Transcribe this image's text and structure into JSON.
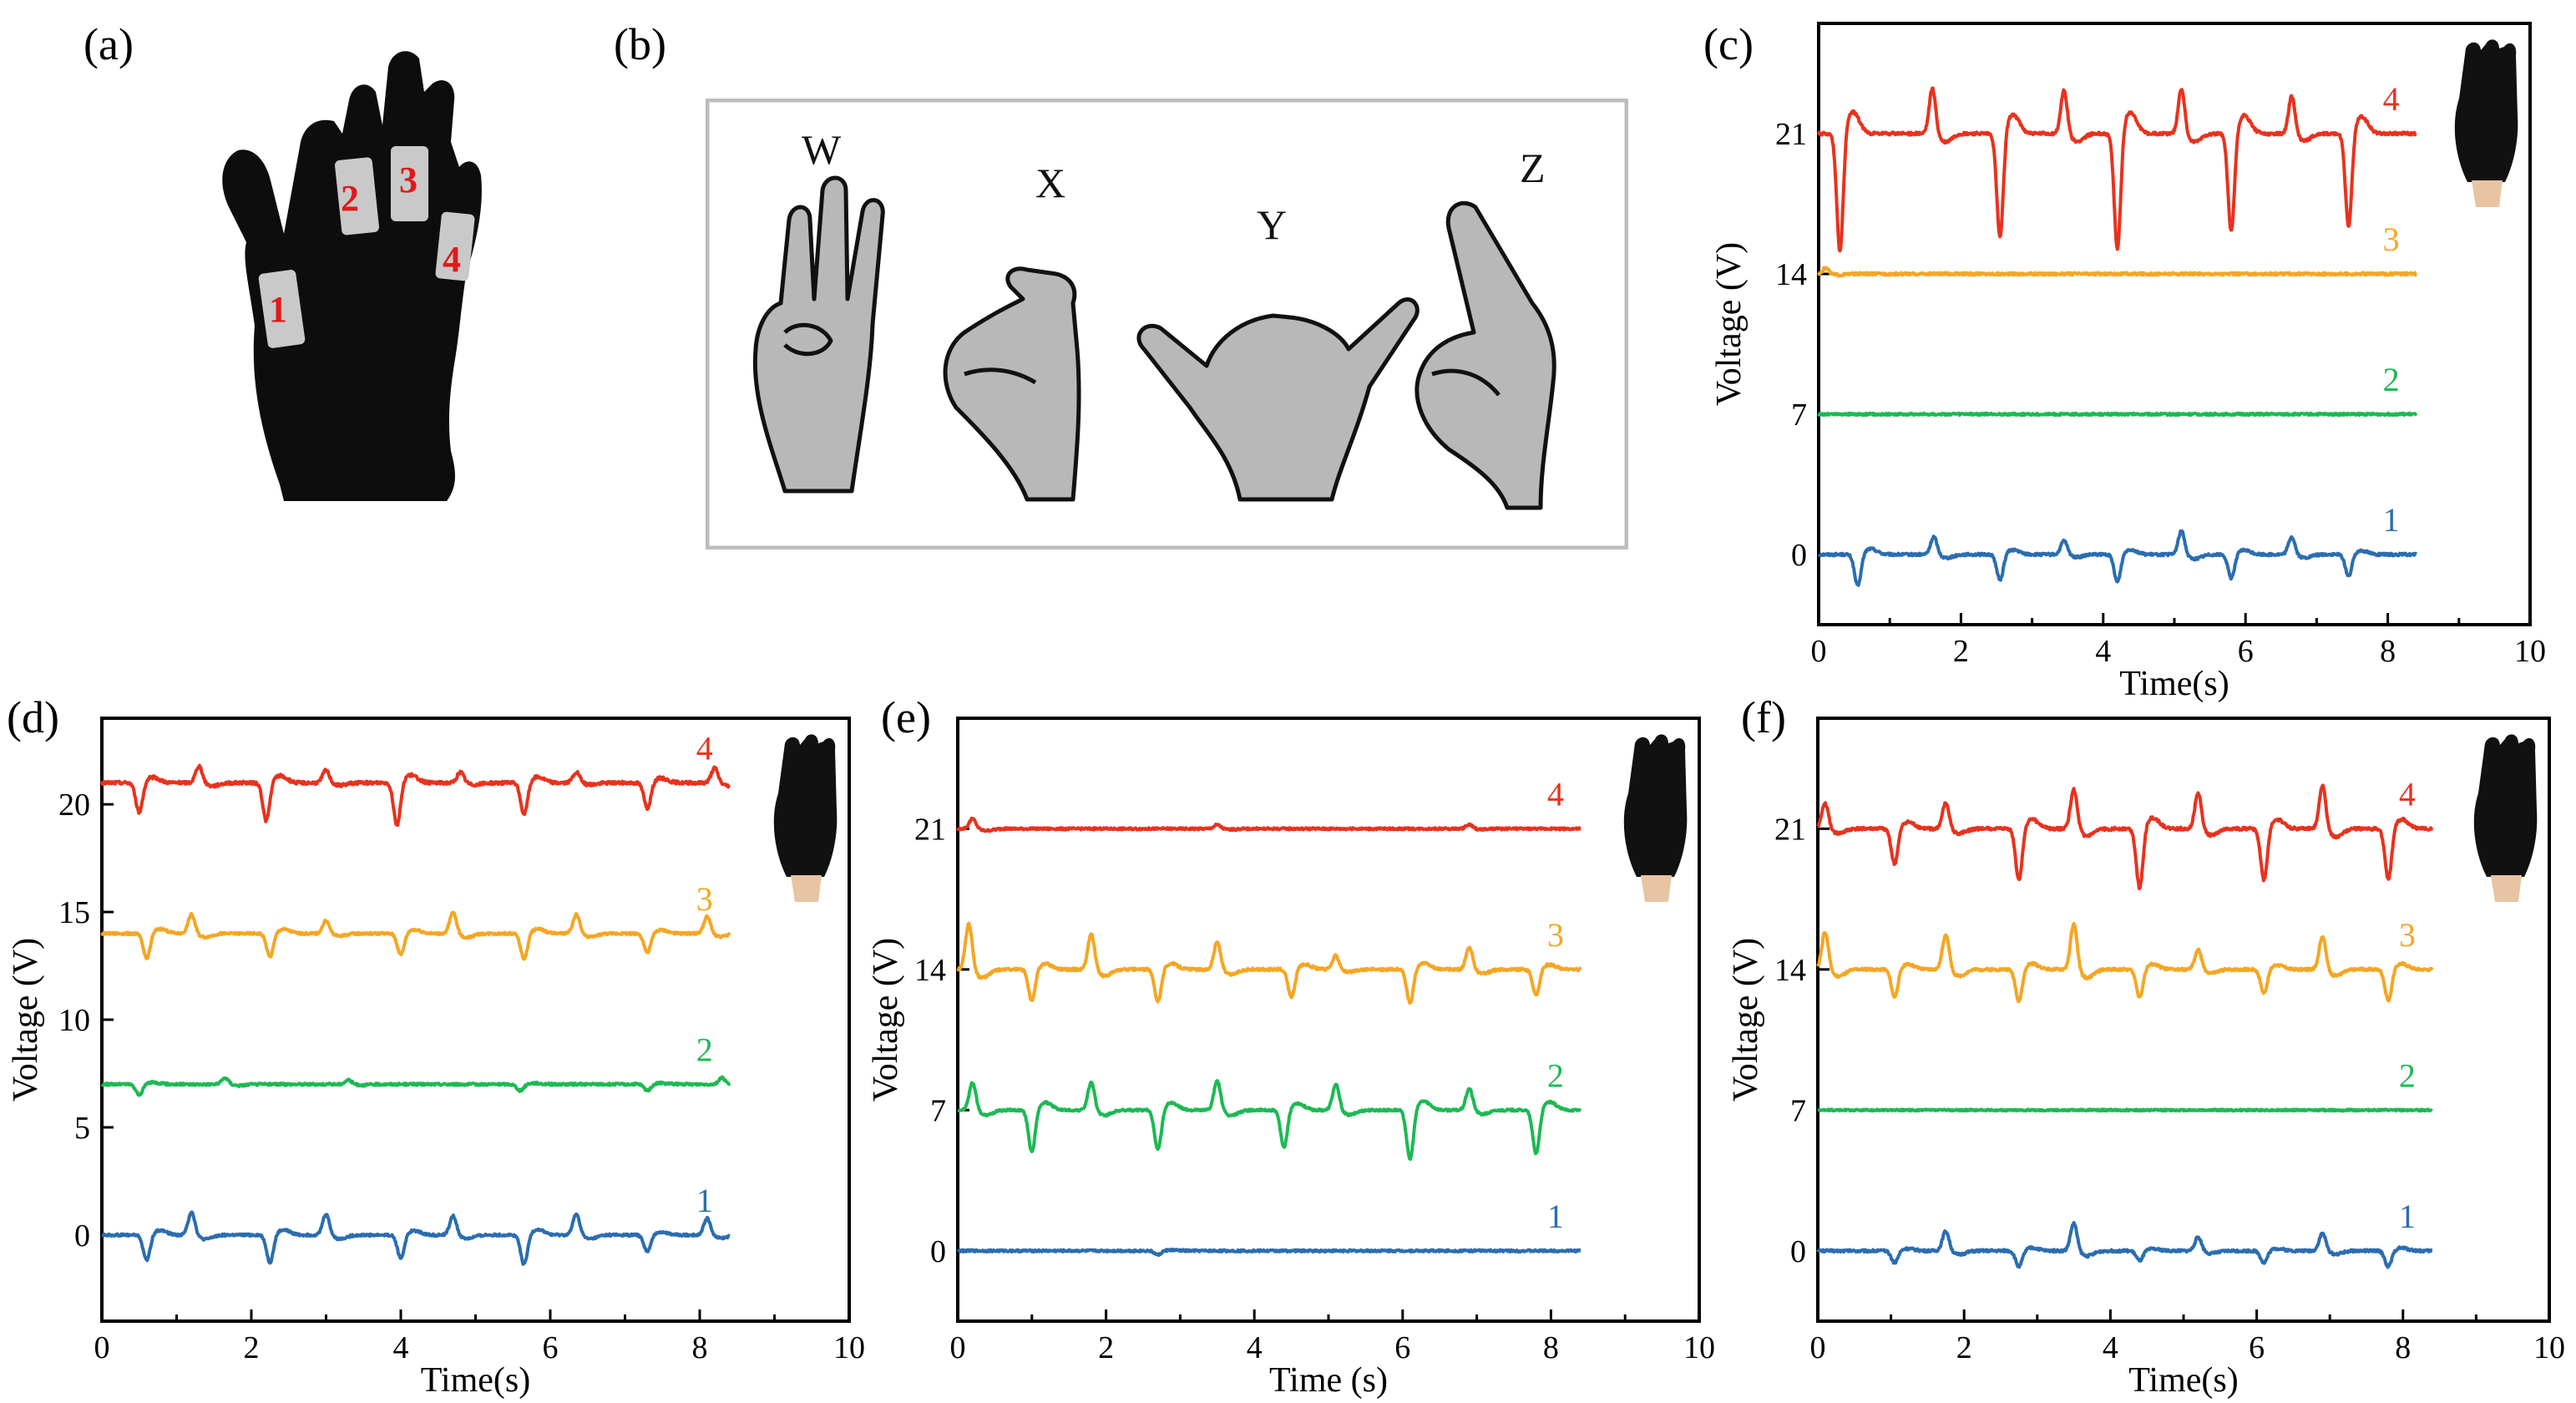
{
  "panel_labels": {
    "a": "(a)",
    "b": "(b)",
    "c": "(c)",
    "d": "(d)",
    "e": "(e)",
    "f": "(f)"
  },
  "glove": {
    "markers": [
      "1",
      "2",
      "3",
      "4"
    ]
  },
  "gestures": {
    "letters": [
      "W",
      "X",
      "Y",
      "Z"
    ]
  },
  "colors": {
    "ch1": "#2b6db0",
    "ch2": "#1db954",
    "ch3": "#f5a623",
    "ch4": "#e8321e",
    "frame": "#bdbdbd",
    "marker": "#e0191b",
    "hand_fill": "#b8b8b8"
  },
  "chart_data": [
    {
      "id": "c",
      "type": "line",
      "title": "",
      "xlabel": "Time(s)",
      "ylabel": "Voltage (V)",
      "xlim": [
        0,
        10
      ],
      "ylim": [
        -3.5,
        26.5
      ],
      "xticks": [
        0,
        2,
        4,
        6,
        8,
        10
      ],
      "yticks": [
        0,
        7,
        14,
        21
      ],
      "series": [
        {
          "name": "1",
          "baseline": 0,
          "duration": 8.4,
          "noise": 0.06,
          "spikes": [
            [
              0.55,
              -1.6
            ],
            [
              1.62,
              0.9
            ],
            [
              2.55,
              -1.3
            ],
            [
              3.45,
              0.7
            ],
            [
              4.2,
              -1.4
            ],
            [
              5.1,
              1.2
            ],
            [
              5.8,
              -1.2
            ],
            [
              6.65,
              0.9
            ],
            [
              7.45,
              -1.1
            ]
          ]
        },
        {
          "name": "2",
          "baseline": 7,
          "duration": 8.4,
          "noise": 0.05,
          "spikes": []
        },
        {
          "name": "3",
          "baseline": 14,
          "duration": 8.4,
          "noise": 0.06,
          "spikes": [
            [
              0.1,
              0.3
            ]
          ]
        },
        {
          "name": "4",
          "baseline": 21,
          "duration": 8.4,
          "noise": 0.07,
          "spikes": [
            [
              0.3,
              -6
            ],
            [
              1.6,
              2.3
            ],
            [
              2.55,
              -5.3
            ],
            [
              3.45,
              2.2
            ],
            [
              4.2,
              -5.9
            ],
            [
              5.1,
              2.3
            ],
            [
              5.8,
              -5.0
            ],
            [
              6.65,
              1.9
            ],
            [
              7.45,
              -4.7
            ]
          ]
        }
      ]
    },
    {
      "id": "d",
      "type": "line",
      "title": "",
      "xlabel": "Time(s)",
      "ylabel": "Voltage (V)",
      "xlim": [
        0,
        10
      ],
      "ylim": [
        -4,
        24
      ],
      "xticks": [
        0,
        2,
        4,
        6,
        8,
        10
      ],
      "yticks": [
        0,
        5,
        10,
        15,
        20
      ],
      "series": [
        {
          "name": "1",
          "baseline": 0,
          "duration": 8.4,
          "noise": 0.05,
          "spikes": [
            [
              0.6,
              -1.2
            ],
            [
              1.2,
              1.1
            ],
            [
              2.25,
              -1.3
            ],
            [
              3.0,
              1.0
            ],
            [
              4.0,
              -1.1
            ],
            [
              4.7,
              0.9
            ],
            [
              5.65,
              -1.4
            ],
            [
              6.35,
              1.0
            ],
            [
              7.3,
              -0.8
            ],
            [
              8.1,
              0.8
            ]
          ]
        },
        {
          "name": "2",
          "baseline": 7,
          "duration": 8.4,
          "noise": 0.05,
          "spikes": [
            [
              0.5,
              -0.5
            ],
            [
              1.65,
              0.3
            ],
            [
              3.3,
              0.2
            ],
            [
              5.6,
              -0.3
            ],
            [
              7.3,
              -0.3
            ],
            [
              8.3,
              0.3
            ]
          ]
        },
        {
          "name": "3",
          "baseline": 14,
          "duration": 8.4,
          "noise": 0.05,
          "spikes": [
            [
              0.6,
              -1.2
            ],
            [
              1.2,
              0.9
            ],
            [
              2.25,
              -1.1
            ],
            [
              3.0,
              0.6
            ],
            [
              4.0,
              -1.0
            ],
            [
              4.7,
              1.0
            ],
            [
              5.65,
              -1.2
            ],
            [
              6.35,
              0.9
            ],
            [
              7.3,
              -0.9
            ],
            [
              8.1,
              0.8
            ]
          ]
        },
        {
          "name": "4",
          "baseline": 21,
          "duration": 8.4,
          "noise": 0.07,
          "spikes": [
            [
              0.5,
              -1.4
            ],
            [
              1.3,
              0.8
            ],
            [
              2.2,
              -1.8
            ],
            [
              3.0,
              0.6
            ],
            [
              3.95,
              -2.0
            ],
            [
              4.8,
              0.5
            ],
            [
              5.65,
              -1.5
            ],
            [
              6.35,
              0.5
            ],
            [
              7.3,
              -1.2
            ],
            [
              8.2,
              0.7
            ]
          ]
        }
      ]
    },
    {
      "id": "e",
      "type": "line",
      "title": "",
      "xlabel": "Time (s)",
      "ylabel": "Voltage (V)",
      "xlim": [
        0,
        10
      ],
      "ylim": [
        -3.5,
        26.5
      ],
      "xticks": [
        0,
        2,
        4,
        6,
        8,
        10
      ],
      "yticks": [
        0,
        7,
        14,
        21
      ],
      "series": [
        {
          "name": "1",
          "baseline": 0,
          "duration": 8.4,
          "noise": 0.05,
          "spikes": [
            [
              2.7,
              -0.2
            ]
          ]
        },
        {
          "name": "2",
          "baseline": 7,
          "duration": 8.4,
          "noise": 0.05,
          "spikes": [
            [
              0.2,
              1.4
            ],
            [
              1.0,
              -2.1
            ],
            [
              1.8,
              1.4
            ],
            [
              2.7,
              -2.0
            ],
            [
              3.5,
              1.5
            ],
            [
              4.4,
              -1.9
            ],
            [
              5.1,
              1.3
            ],
            [
              6.1,
              -2.5
            ],
            [
              6.9,
              1.1
            ],
            [
              7.8,
              -2.2
            ]
          ]
        },
        {
          "name": "3",
          "baseline": 14,
          "duration": 8.4,
          "noise": 0.06,
          "spikes": [
            [
              0.15,
              2.3
            ],
            [
              1.0,
              -1.6
            ],
            [
              1.8,
              1.8
            ],
            [
              2.7,
              -1.6
            ],
            [
              3.5,
              1.4
            ],
            [
              4.5,
              -1.4
            ],
            [
              5.1,
              0.7
            ],
            [
              6.1,
              -1.7
            ],
            [
              6.9,
              1.1
            ],
            [
              7.8,
              -1.3
            ]
          ]
        },
        {
          "name": "4",
          "baseline": 21,
          "duration": 8.4,
          "noise": 0.05,
          "spikes": [
            [
              0.2,
              0.5
            ],
            [
              3.5,
              0.2
            ],
            [
              6.9,
              0.2
            ]
          ]
        }
      ]
    },
    {
      "id": "f",
      "type": "line",
      "title": "",
      "xlabel": "Time(s)",
      "ylabel": "Voltage (V)",
      "xlim": [
        0,
        10
      ],
      "ylim": [
        -3.5,
        26.5
      ],
      "xticks": [
        0,
        2,
        4,
        6,
        8,
        10
      ],
      "yticks": [
        0,
        7,
        14,
        21
      ],
      "series": [
        {
          "name": "1",
          "baseline": 0,
          "duration": 8.4,
          "noise": 0.06,
          "spikes": [
            [
              1.05,
              -0.6
            ],
            [
              1.75,
              1.0
            ],
            [
              2.75,
              -0.8
            ],
            [
              3.5,
              1.4
            ],
            [
              4.4,
              -0.5
            ],
            [
              5.2,
              0.7
            ],
            [
              6.1,
              -0.6
            ],
            [
              6.9,
              0.9
            ],
            [
              7.8,
              -0.8
            ]
          ]
        },
        {
          "name": "2",
          "baseline": 7,
          "duration": 8.4,
          "noise": 0.04,
          "spikes": []
        },
        {
          "name": "3",
          "baseline": 14,
          "duration": 8.4,
          "noise": 0.06,
          "spikes": [
            [
              0.1,
              1.9
            ],
            [
              1.05,
              -1.4
            ],
            [
              1.75,
              1.8
            ],
            [
              2.75,
              -1.6
            ],
            [
              3.5,
              2.3
            ],
            [
              4.4,
              -1.4
            ],
            [
              5.2,
              1.0
            ],
            [
              6.1,
              -1.2
            ],
            [
              6.9,
              1.7
            ],
            [
              7.8,
              -1.6
            ]
          ]
        },
        {
          "name": "4",
          "baseline": 21,
          "duration": 8.4,
          "noise": 0.07,
          "spikes": [
            [
              0.1,
              1.3
            ],
            [
              1.05,
              -1.8
            ],
            [
              1.75,
              1.3
            ],
            [
              2.75,
              -2.6
            ],
            [
              3.5,
              2.0
            ],
            [
              4.4,
              -3.0
            ],
            [
              5.2,
              1.8
            ],
            [
              6.1,
              -2.6
            ],
            [
              6.9,
              2.2
            ],
            [
              7.8,
              -2.6
            ]
          ]
        }
      ]
    }
  ]
}
